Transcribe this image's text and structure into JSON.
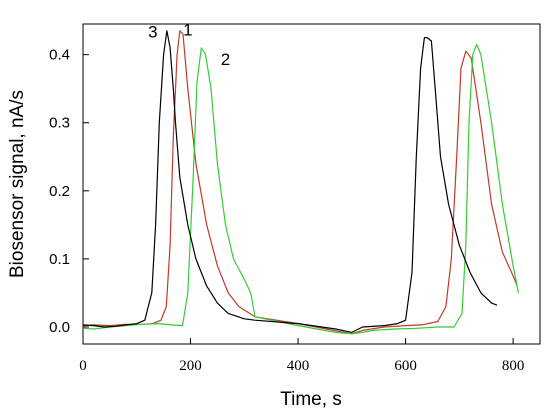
{
  "chart_data": {
    "type": "line",
    "xlabel": "Time, s",
    "ylabel": "Biosensor signal, nA/s",
    "xlim": [
      0,
      850
    ],
    "ylim": [
      -0.025,
      0.445
    ],
    "x_ticks": [
      0,
      200,
      400,
      600,
      800
    ],
    "y_ticks": [
      0.0,
      0.1,
      0.2,
      0.3,
      0.4
    ],
    "y_tick_labels": [
      "0.0",
      "0.1",
      "0.2",
      "0.3",
      "0.4"
    ],
    "grid": false,
    "legend": "none",
    "series": [
      {
        "name": "1",
        "color": "#c0392b",
        "x": [
          0,
          20,
          50,
          80,
          110,
          130,
          145,
          155,
          162,
          168,
          175,
          180,
          186,
          195,
          210,
          230,
          250,
          270,
          290,
          310,
          320,
          400,
          500,
          520,
          560,
          600,
          630,
          660,
          675,
          685,
          695,
          703,
          712,
          722,
          740,
          760,
          780,
          800,
          808
        ],
        "y": [
          0.002,
          0.003,
          0.002,
          0.004,
          0.004,
          0.005,
          0.01,
          0.03,
          0.12,
          0.28,
          0.4,
          0.435,
          0.43,
          0.35,
          0.24,
          0.15,
          0.09,
          0.05,
          0.03,
          0.02,
          0.015,
          0.005,
          -0.01,
          -0.005,
          0.0,
          0.002,
          0.003,
          0.008,
          0.03,
          0.1,
          0.25,
          0.38,
          0.405,
          0.395,
          0.3,
          0.18,
          0.11,
          0.075,
          0.06
        ]
      },
      {
        "name": "2",
        "color": "#33cc33",
        "x": [
          0,
          20,
          50,
          80,
          110,
          140,
          165,
          185,
          195,
          205,
          212,
          220,
          228,
          238,
          250,
          265,
          280,
          300,
          312,
          320,
          400,
          470,
          500,
          520,
          540,
          580,
          620,
          660,
          690,
          705,
          712,
          718,
          725,
          732,
          740,
          760,
          780,
          800,
          810
        ],
        "y": [
          -0.002,
          -0.003,
          0.0,
          0.002,
          0.004,
          0.005,
          0.003,
          0.002,
          0.05,
          0.22,
          0.36,
          0.41,
          0.4,
          0.35,
          0.24,
          0.15,
          0.1,
          0.07,
          0.05,
          0.015,
          0.002,
          -0.008,
          -0.01,
          -0.008,
          -0.005,
          -0.003,
          -0.002,
          0.0,
          0.0,
          0.02,
          0.12,
          0.3,
          0.4,
          0.415,
          0.4,
          0.3,
          0.18,
          0.09,
          0.05
        ]
      },
      {
        "name": "3",
        "color": "#000000",
        "x": [
          0,
          20,
          40,
          60,
          80,
          100,
          115,
          128,
          135,
          142,
          150,
          156,
          162,
          168,
          172,
          180,
          195,
          210,
          230,
          250,
          270,
          300,
          320,
          400,
          470,
          500,
          520,
          560,
          585,
          600,
          612,
          620,
          628,
          635,
          640,
          648,
          655,
          665,
          680,
          700,
          720,
          740,
          760,
          770
        ],
        "y": [
          0.003,
          0.002,
          0.0,
          0.001,
          0.003,
          0.005,
          0.01,
          0.05,
          0.15,
          0.3,
          0.4,
          0.435,
          0.41,
          0.35,
          0.3,
          0.22,
          0.15,
          0.1,
          0.06,
          0.035,
          0.02,
          0.012,
          0.01,
          0.005,
          -0.003,
          -0.008,
          0.0,
          0.002,
          0.005,
          0.01,
          0.08,
          0.25,
          0.38,
          0.425,
          0.425,
          0.42,
          0.35,
          0.25,
          0.18,
          0.12,
          0.08,
          0.05,
          0.035,
          0.032
        ]
      }
    ],
    "annotations": [
      {
        "text": "1",
        "x": 195,
        "y": 0.428
      },
      {
        "text": "2",
        "x": 265,
        "y": 0.385
      },
      {
        "text": "3",
        "x": 130,
        "y": 0.425
      }
    ]
  }
}
